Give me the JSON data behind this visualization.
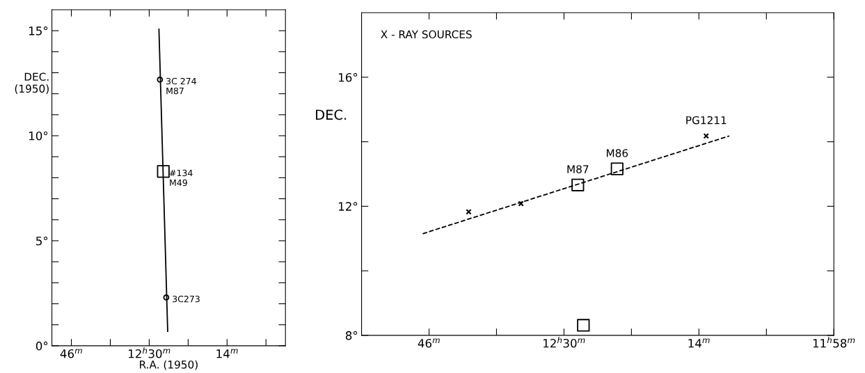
{
  "chart_data": [
    {
      "type": "scatter",
      "xlabel": "R.A. (1950)",
      "ylabel": "DEC.\n(1950)",
      "xlim": [
        50,
        2
      ],
      "ylim": [
        0,
        16
      ],
      "xticks": [
        {
          "value": 46,
          "label": "46$^{m}$"
        },
        {
          "value": 38,
          "label": null
        },
        {
          "value": 30,
          "label": "12$^{h}$30$^{m}$"
        },
        {
          "value": 22,
          "label": null
        },
        {
          "value": 14,
          "label": "14$^{m}$"
        },
        {
          "value": 6,
          "label": null
        }
      ],
      "yticks": [
        {
          "value": 0,
          "label": "0°"
        },
        {
          "value": 1,
          "label": null
        },
        {
          "value": 2,
          "label": null
        },
        {
          "value": 3,
          "label": null
        },
        {
          "value": 4,
          "label": null
        },
        {
          "value": 5,
          "label": "5°"
        },
        {
          "value": 6,
          "label": null
        },
        {
          "value": 7,
          "label": null
        },
        {
          "value": 8,
          "label": null
        },
        {
          "value": 9,
          "label": null
        },
        {
          "value": 10,
          "label": "10°"
        },
        {
          "value": 11,
          "label": null
        },
        {
          "value": 12,
          "label": null
        },
        {
          "value": 13,
          "label": null
        },
        {
          "value": 14,
          "label": null
        },
        {
          "value": 15,
          "label": "15°"
        }
      ],
      "series": [
        {
          "type": "line",
          "color": "#000000",
          "line_style": "solid",
          "marker": "none",
          "x": [
            28.0,
            26.2
          ],
          "values": [
            15.07,
            0.69
          ]
        },
        {
          "color": "#000000",
          "marker": "circle",
          "x": [
            27.8,
            26.5
          ],
          "values": [
            12.67,
            2.3
          ]
        },
        {
          "color": "#000000",
          "marker": "square",
          "x": [
            27.1
          ],
          "values": [
            8.3
          ]
        }
      ],
      "annotations": [
        {
          "text": "3C 274\nM87",
          "x": 27.8,
          "y": 12.67
        },
        {
          "text": "#134\nM49",
          "x": 27.1,
          "y": 8.3
        },
        {
          "text": "3C273",
          "x": 26.5,
          "y": 2.3
        }
      ]
    },
    {
      "type": "scatter",
      "ylabel": "DEC.",
      "xlim": [
        54,
        -2
      ],
      "ylim": [
        8,
        18
      ],
      "xticks": [
        {
          "value": 46,
          "label": "46$^{m}$"
        },
        {
          "value": 38,
          "label": null
        },
        {
          "value": 30,
          "label": "12$^{h}$30$^{m}$"
        },
        {
          "value": 22,
          "label": null
        },
        {
          "value": 14,
          "label": "14$^{m}$"
        },
        {
          "value": 6,
          "label": null
        },
        {
          "value": -2,
          "label": "11$^{h}$58$^{m}$"
        }
      ],
      "yticks": [
        {
          "value": 8,
          "label": "8°"
        },
        {
          "value": 10,
          "label": null
        },
        {
          "value": 12,
          "label": "12°"
        },
        {
          "value": 14,
          "label": null
        },
        {
          "value": 16,
          "label": "16°"
        }
      ],
      "series": [
        {
          "type": "line",
          "color": "#000000",
          "line_style": "dashed",
          "marker": "none",
          "x": [
            46.75,
            10.4
          ],
          "values": [
            11.15,
            14.18
          ]
        },
        {
          "color": "#000000",
          "marker": "cross",
          "x": [
            41.3,
            35.1,
            13.14
          ],
          "values": [
            11.83,
            12.08,
            14.18
          ]
        },
        {
          "color": "#000000",
          "marker": "square",
          "x": [
            28.36,
            23.7,
            27.7
          ],
          "values": [
            12.66,
            13.16,
            8.31
          ]
        }
      ],
      "annotations": [
        "X - RAY SOURCES",
        {
          "text": "M87",
          "x": 28.36,
          "y": 12.66
        },
        {
          "text": "M86",
          "x": 23.7,
          "y": 13.16
        },
        {
          "text": "PG1211",
          "x": 13.14,
          "y": 14.18
        }
      ]
    }
  ]
}
